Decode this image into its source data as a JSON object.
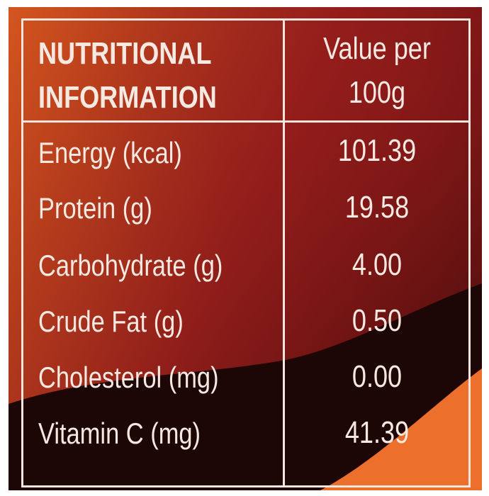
{
  "table": {
    "header": {
      "left_line1": "NUTRITIONAL",
      "left_line2": "INFORMATION",
      "right_line1": "Value per",
      "right_line2": "100g"
    },
    "rows": [
      {
        "label": "Energy (kcal)",
        "value": "101.39"
      },
      {
        "label": "Protein (g)",
        "value": "19.58"
      },
      {
        "label": "Carbohydrate (g)",
        "value": "4.00"
      },
      {
        "label": "Crude Fat (g)",
        "value": "0.50"
      },
      {
        "label": "Cholesterol (mg)",
        "value": "0.00"
      },
      {
        "label": "Vitamin C (mg)",
        "value": "41.39"
      }
    ]
  },
  "colors": {
    "background_orange": "#e8682a",
    "background_maroon": "#7a1616",
    "background_dark": "#200708",
    "text": "#f6e9e1"
  }
}
